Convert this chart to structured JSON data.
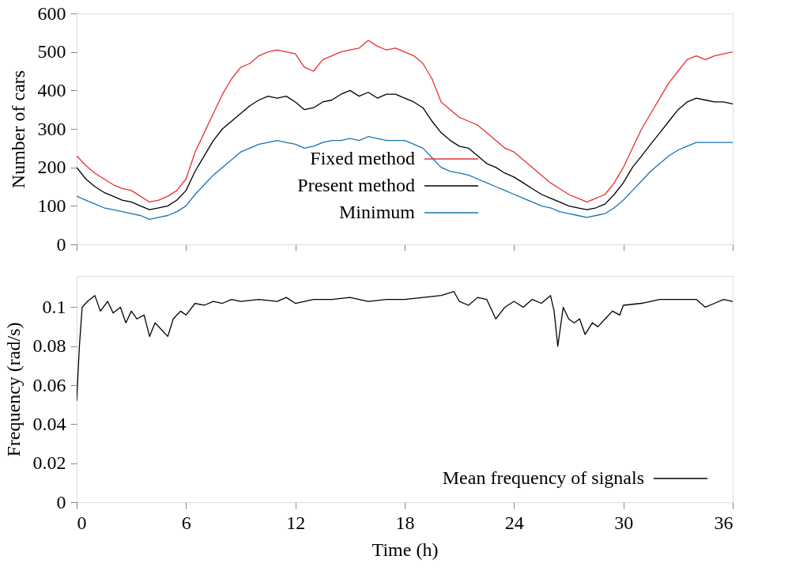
{
  "chart_data": [
    {
      "type": "line",
      "ylabel": "Number of cars",
      "xlim": [
        0,
        36
      ],
      "xticks": [
        0,
        6,
        12,
        18,
        24,
        30,
        36
      ],
      "ylim": [
        0,
        600
      ],
      "yticks": [
        0,
        100,
        200,
        300,
        400,
        500,
        600
      ],
      "tick_labels": "y",
      "legend": "bottom",
      "grid": false,
      "x": [
        0,
        0.5,
        1,
        1.5,
        2,
        2.5,
        3,
        3.5,
        4,
        4.5,
        5,
        5.5,
        6,
        6.5,
        7,
        7.5,
        8,
        8.5,
        9,
        9.5,
        10,
        10.5,
        11,
        11.5,
        12,
        12.5,
        13,
        13.5,
        14,
        14.5,
        15,
        15.5,
        16,
        16.5,
        17,
        17.5,
        18,
        18.5,
        19,
        19.5,
        20,
        20.5,
        21,
        21.5,
        22,
        22.5,
        23,
        23.5,
        24,
        24.5,
        25,
        25.5,
        26,
        26.5,
        27,
        27.5,
        28,
        28.5,
        29,
        29.5,
        30,
        30.5,
        31,
        31.5,
        32,
        32.5,
        33,
        33.5,
        34,
        34.5,
        35,
        35.5,
        36
      ],
      "series": [
        {
          "name": "Fixed method",
          "color": "#e8302f",
          "values": [
            230,
            205,
            185,
            170,
            155,
            145,
            140,
            125,
            110,
            115,
            125,
            140,
            170,
            240,
            290,
            340,
            390,
            430,
            460,
            470,
            490,
            500,
            505,
            500,
            495,
            460,
            450,
            480,
            490,
            500,
            505,
            510,
            530,
            515,
            505,
            510,
            500,
            490,
            470,
            430,
            370,
            350,
            330,
            320,
            310,
            290,
            270,
            250,
            240,
            220,
            200,
            180,
            160,
            145,
            130,
            120,
            110,
            120,
            130,
            160,
            200,
            250,
            300,
            340,
            380,
            420,
            450,
            480,
            490,
            480,
            490,
            495,
            500
          ]
        },
        {
          "name": "Present method",
          "color": "#000000",
          "values": [
            200,
            170,
            150,
            135,
            125,
            115,
            110,
            100,
            90,
            95,
            100,
            115,
            140,
            190,
            230,
            270,
            300,
            320,
            340,
            360,
            375,
            385,
            380,
            385,
            370,
            350,
            355,
            370,
            375,
            390,
            400,
            385,
            395,
            380,
            390,
            390,
            380,
            370,
            355,
            320,
            290,
            270,
            255,
            250,
            230,
            210,
            200,
            185,
            175,
            160,
            145,
            130,
            120,
            110,
            100,
            95,
            90,
            95,
            105,
            130,
            160,
            200,
            230,
            260,
            290,
            320,
            350,
            370,
            380,
            375,
            370,
            370,
            365
          ]
        },
        {
          "name": "Minimum",
          "color": "#1a72b0",
          "values": [
            125,
            115,
            105,
            95,
            90,
            85,
            80,
            75,
            65,
            70,
            75,
            85,
            100,
            130,
            155,
            180,
            200,
            220,
            240,
            250,
            260,
            265,
            270,
            265,
            260,
            250,
            255,
            265,
            270,
            270,
            275,
            270,
            280,
            275,
            270,
            270,
            270,
            260,
            250,
            225,
            200,
            190,
            185,
            180,
            170,
            160,
            150,
            140,
            130,
            120,
            110,
            100,
            95,
            85,
            80,
            75,
            70,
            75,
            80,
            95,
            115,
            140,
            165,
            190,
            210,
            230,
            245,
            255,
            265,
            265,
            265,
            265,
            265
          ]
        }
      ]
    },
    {
      "type": "line",
      "xlabel": "Time (h)",
      "ylabel": "Frequency (rad/s)",
      "xlim": [
        0,
        36
      ],
      "xticks": [
        0,
        6,
        12,
        18,
        24,
        30,
        36
      ],
      "ylim": [
        0,
        0.116
      ],
      "yticks": [
        0,
        0.02,
        0.04,
        0.06,
        0.08,
        0.1
      ],
      "legend": "bottom right",
      "grid": false,
      "x": [
        0,
        0.15,
        0.3,
        0.6,
        1,
        1.3,
        1.7,
        2,
        2.4,
        2.7,
        3,
        3.3,
        3.7,
        4,
        4.3,
        4.7,
        5,
        5.3,
        5.7,
        6,
        6.5,
        7,
        7.5,
        8,
        8.5,
        9,
        10,
        11,
        11.5,
        12,
        13,
        14,
        15,
        16,
        17,
        18,
        19,
        20,
        20.7,
        21,
        21.5,
        22,
        22.5,
        23,
        23.5,
        24,
        24.5,
        25,
        25.5,
        26,
        26.2,
        26.4,
        26.7,
        27,
        27.3,
        27.6,
        27.9,
        28.3,
        28.6,
        29,
        29.4,
        29.8,
        30,
        31,
        32,
        33,
        34,
        34.5,
        35,
        35.5,
        36
      ],
      "series": [
        {
          "name": "Mean frequency of signals",
          "color": "#000000",
          "values": [
            0.052,
            0.08,
            0.1,
            0.103,
            0.106,
            0.098,
            0.103,
            0.097,
            0.1,
            0.092,
            0.098,
            0.094,
            0.096,
            0.085,
            0.092,
            0.088,
            0.085,
            0.094,
            0.098,
            0.096,
            0.102,
            0.101,
            0.103,
            0.102,
            0.104,
            0.103,
            0.104,
            0.103,
            0.105,
            0.102,
            0.104,
            0.104,
            0.105,
            0.103,
            0.104,
            0.104,
            0.105,
            0.106,
            0.108,
            0.103,
            0.101,
            0.105,
            0.104,
            0.094,
            0.1,
            0.103,
            0.1,
            0.104,
            0.102,
            0.106,
            0.098,
            0.08,
            0.1,
            0.094,
            0.092,
            0.094,
            0.086,
            0.092,
            0.09,
            0.094,
            0.098,
            0.096,
            0.101,
            0.102,
            0.104,
            0.104,
            0.104,
            0.1,
            0.102,
            0.104,
            0.103
          ]
        }
      ]
    }
  ]
}
